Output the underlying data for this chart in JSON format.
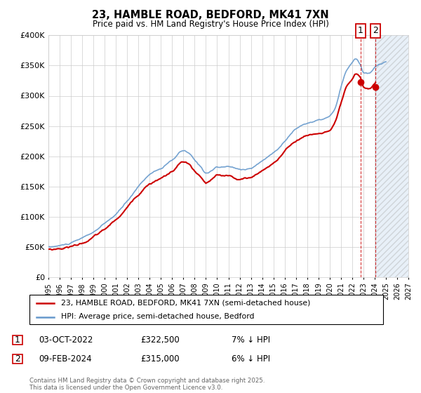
{
  "title": "23, HAMBLE ROAD, BEDFORD, MK41 7XN",
  "subtitle": "Price paid vs. HM Land Registry's House Price Index (HPI)",
  "legend_label_red": "23, HAMBLE ROAD, BEDFORD, MK41 7XN (semi-detached house)",
  "legend_label_blue": "HPI: Average price, semi-detached house, Bedford",
  "sale1_date": "03-OCT-2022",
  "sale1_price": "£322,500",
  "sale1_hpi": "7% ↓ HPI",
  "sale2_date": "09-FEB-2024",
  "sale2_price": "£315,000",
  "sale2_hpi": "6% ↓ HPI",
  "footer": "Contains HM Land Registry data © Crown copyright and database right 2025.\nThis data is licensed under the Open Government Licence v3.0.",
  "xmin": 1995.0,
  "xmax": 2027.0,
  "ymin": 0,
  "ymax": 400000,
  "yticks": [
    0,
    50000,
    100000,
    150000,
    200000,
    250000,
    300000,
    350000,
    400000
  ],
  "ytick_labels": [
    "£0",
    "£50K",
    "£100K",
    "£150K",
    "£200K",
    "£250K",
    "£300K",
    "£350K",
    "£400K"
  ],
  "red_color": "#cc0000",
  "blue_color": "#6699cc",
  "blue_fill": "#ddeeff",
  "marker1_year": 2022.75,
  "marker1_value": 322500,
  "marker2_year": 2024.08,
  "marker2_value": 315000,
  "hatch_xmin": 2024.08,
  "hatch_xmax": 2027.0
}
